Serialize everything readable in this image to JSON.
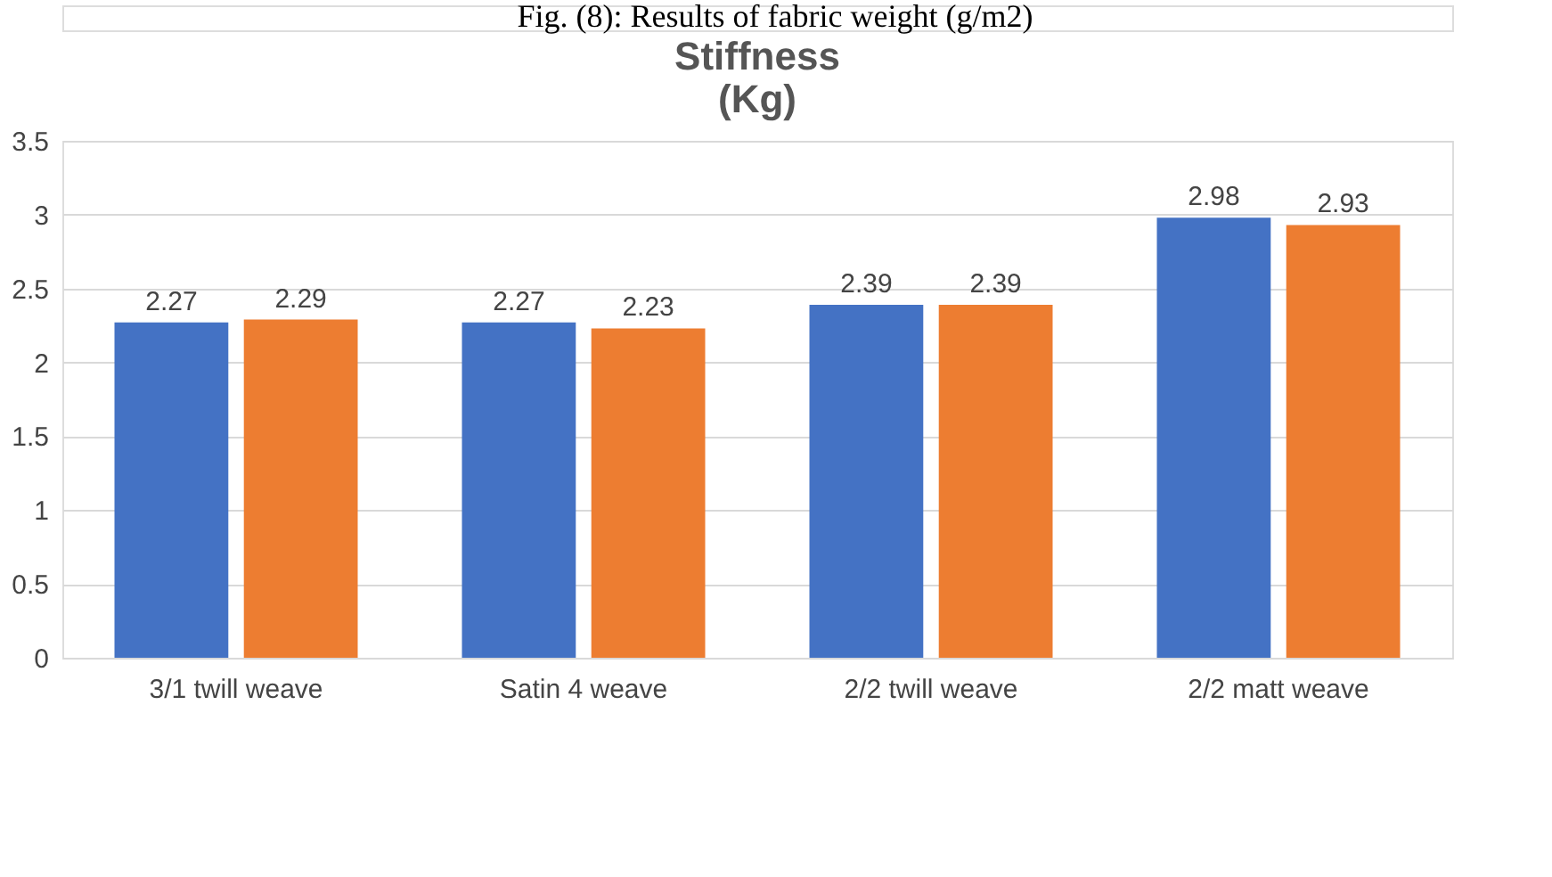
{
  "chart_data": {
    "type": "bar",
    "title": "Stiffness\n(Kg)",
    "annotations": [
      "Fig. (8): Results of fabric weight (g/m2)"
    ],
    "categories": [
      "3/1 twill weave",
      "Satin 4 weave",
      "2/2 twill weave",
      "2/2 matt weave"
    ],
    "series": [
      {
        "color": "#4472c4",
        "values": [
          2.27,
          2.27,
          2.39,
          2.98
        ]
      },
      {
        "color": "#ed7d31",
        "values": [
          2.29,
          2.23,
          2.39,
          2.93
        ]
      }
    ],
    "ylim": [
      0,
      3.5
    ],
    "yticks": [
      0,
      0.5,
      1,
      1.5,
      2,
      2.5,
      3,
      3.5
    ],
    "grid": "y",
    "data_labels": true
  }
}
